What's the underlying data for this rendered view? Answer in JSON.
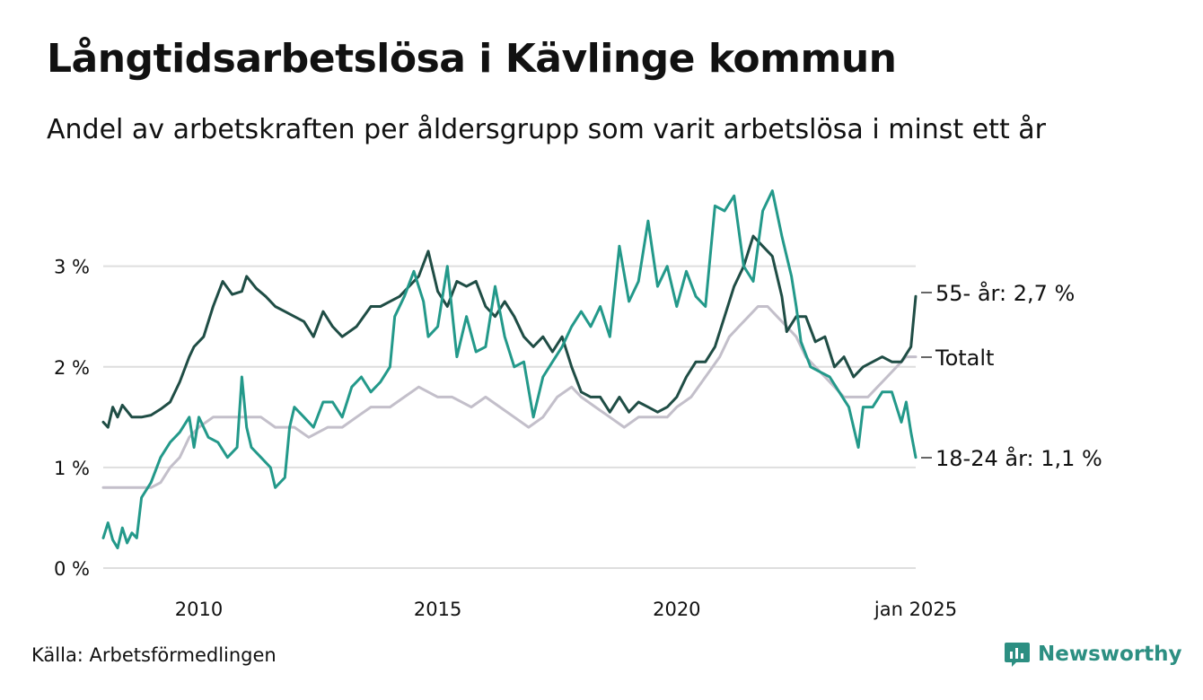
{
  "header": {
    "title": "Långtidsarbetslösa i Kävlinge kommun",
    "subtitle": "Andel av arbetskraften per åldersgrupp som varit arbetslösa i minst ett år"
  },
  "footer": {
    "source": "Källa: Arbetsförmedlingen",
    "brand": "Newsworthy"
  },
  "chart_data": {
    "type": "line",
    "ylim": [
      0,
      3.8
    ],
    "xlim": [
      2008.0,
      2025.0
    ],
    "y_ticks": [
      {
        "value": 0,
        "label": "0 %"
      },
      {
        "value": 1,
        "label": "1 %"
      },
      {
        "value": 2,
        "label": "2 %"
      },
      {
        "value": 3,
        "label": "3 %"
      }
    ],
    "x_ticks": [
      {
        "value": 2010,
        "label": "2010"
      },
      {
        "value": 2015,
        "label": "2015"
      },
      {
        "value": 2020,
        "label": "2020"
      },
      {
        "value": 2025,
        "label": "jan 2025"
      }
    ],
    "grid": "horizontal",
    "series": [
      {
        "id": "total",
        "name": "Totalt",
        "end_label": "Totalt",
        "color": "#c3bfca",
        "points": [
          [
            2008.0,
            0.8
          ],
          [
            2009.0,
            0.8
          ],
          [
            2009.2,
            0.85
          ],
          [
            2009.4,
            1.0
          ],
          [
            2009.6,
            1.1
          ],
          [
            2009.8,
            1.3
          ],
          [
            2010.0,
            1.4
          ],
          [
            2010.3,
            1.5
          ],
          [
            2010.6,
            1.5
          ],
          [
            2011.0,
            1.5
          ],
          [
            2011.3,
            1.5
          ],
          [
            2011.6,
            1.4
          ],
          [
            2012.0,
            1.4
          ],
          [
            2012.3,
            1.3
          ],
          [
            2012.7,
            1.4
          ],
          [
            2013.0,
            1.4
          ],
          [
            2013.3,
            1.5
          ],
          [
            2013.6,
            1.6
          ],
          [
            2014.0,
            1.6
          ],
          [
            2014.3,
            1.7
          ],
          [
            2014.6,
            1.8
          ],
          [
            2015.0,
            1.7
          ],
          [
            2015.3,
            1.7
          ],
          [
            2015.7,
            1.6
          ],
          [
            2016.0,
            1.7
          ],
          [
            2016.3,
            1.6
          ],
          [
            2016.6,
            1.5
          ],
          [
            2016.9,
            1.4
          ],
          [
            2017.2,
            1.5
          ],
          [
            2017.5,
            1.7
          ],
          [
            2017.8,
            1.8
          ],
          [
            2018.0,
            1.7
          ],
          [
            2018.3,
            1.6
          ],
          [
            2018.6,
            1.5
          ],
          [
            2018.9,
            1.4
          ],
          [
            2019.2,
            1.5
          ],
          [
            2019.5,
            1.5
          ],
          [
            2019.8,
            1.5
          ],
          [
            2020.0,
            1.6
          ],
          [
            2020.3,
            1.7
          ],
          [
            2020.6,
            1.9
          ],
          [
            2020.9,
            2.1
          ],
          [
            2021.1,
            2.3
          ],
          [
            2021.3,
            2.4
          ],
          [
            2021.5,
            2.5
          ],
          [
            2021.7,
            2.6
          ],
          [
            2021.9,
            2.6
          ],
          [
            2022.1,
            2.5
          ],
          [
            2022.3,
            2.4
          ],
          [
            2022.5,
            2.3
          ],
          [
            2022.7,
            2.1
          ],
          [
            2022.9,
            2.0
          ],
          [
            2023.1,
            1.9
          ],
          [
            2023.3,
            1.8
          ],
          [
            2023.5,
            1.7
          ],
          [
            2023.8,
            1.7
          ],
          [
            2024.0,
            1.7
          ],
          [
            2024.2,
            1.8
          ],
          [
            2024.4,
            1.9
          ],
          [
            2024.6,
            2.0
          ],
          [
            2024.8,
            2.1
          ],
          [
            2025.0,
            2.1
          ]
        ]
      },
      {
        "id": "age55",
        "name": "55- år",
        "end_label": "55- år: 2,7 %",
        "color": "#1f4d45",
        "points": [
          [
            2008.0,
            1.45
          ],
          [
            2008.1,
            1.4
          ],
          [
            2008.2,
            1.6
          ],
          [
            2008.3,
            1.5
          ],
          [
            2008.4,
            1.62
          ],
          [
            2008.6,
            1.5
          ],
          [
            2008.8,
            1.5
          ],
          [
            2009.0,
            1.52
          ],
          [
            2009.2,
            1.58
          ],
          [
            2009.4,
            1.65
          ],
          [
            2009.6,
            1.85
          ],
          [
            2009.8,
            2.1
          ],
          [
            2009.9,
            2.2
          ],
          [
            2010.1,
            2.3
          ],
          [
            2010.3,
            2.6
          ],
          [
            2010.5,
            2.85
          ],
          [
            2010.7,
            2.72
          ],
          [
            2010.9,
            2.75
          ],
          [
            2011.0,
            2.9
          ],
          [
            2011.2,
            2.78
          ],
          [
            2011.4,
            2.7
          ],
          [
            2011.6,
            2.6
          ],
          [
            2011.8,
            2.55
          ],
          [
            2012.0,
            2.5
          ],
          [
            2012.2,
            2.45
          ],
          [
            2012.4,
            2.3
          ],
          [
            2012.6,
            2.55
          ],
          [
            2012.8,
            2.4
          ],
          [
            2013.0,
            2.3
          ],
          [
            2013.3,
            2.4
          ],
          [
            2013.6,
            2.6
          ],
          [
            2013.8,
            2.6
          ],
          [
            2014.0,
            2.65
          ],
          [
            2014.2,
            2.7
          ],
          [
            2014.4,
            2.8
          ],
          [
            2014.6,
            2.9
          ],
          [
            2014.8,
            3.15
          ],
          [
            2015.0,
            2.75
          ],
          [
            2015.2,
            2.6
          ],
          [
            2015.4,
            2.85
          ],
          [
            2015.6,
            2.8
          ],
          [
            2015.8,
            2.85
          ],
          [
            2016.0,
            2.6
          ],
          [
            2016.2,
            2.5
          ],
          [
            2016.4,
            2.65
          ],
          [
            2016.6,
            2.5
          ],
          [
            2016.8,
            2.3
          ],
          [
            2017.0,
            2.2
          ],
          [
            2017.2,
            2.3
          ],
          [
            2017.4,
            2.15
          ],
          [
            2017.6,
            2.3
          ],
          [
            2017.8,
            2.0
          ],
          [
            2018.0,
            1.75
          ],
          [
            2018.2,
            1.7
          ],
          [
            2018.4,
            1.7
          ],
          [
            2018.6,
            1.55
          ],
          [
            2018.8,
            1.7
          ],
          [
            2019.0,
            1.55
          ],
          [
            2019.2,
            1.65
          ],
          [
            2019.4,
            1.6
          ],
          [
            2019.6,
            1.55
          ],
          [
            2019.8,
            1.6
          ],
          [
            2020.0,
            1.7
          ],
          [
            2020.2,
            1.9
          ],
          [
            2020.4,
            2.05
          ],
          [
            2020.6,
            2.05
          ],
          [
            2020.8,
            2.2
          ],
          [
            2021.0,
            2.5
          ],
          [
            2021.2,
            2.8
          ],
          [
            2021.4,
            3.0
          ],
          [
            2021.6,
            3.3
          ],
          [
            2021.8,
            3.2
          ],
          [
            2022.0,
            3.1
          ],
          [
            2022.2,
            2.7
          ],
          [
            2022.3,
            2.35
          ],
          [
            2022.5,
            2.5
          ],
          [
            2022.7,
            2.5
          ],
          [
            2022.9,
            2.25
          ],
          [
            2023.1,
            2.3
          ],
          [
            2023.3,
            2.0
          ],
          [
            2023.5,
            2.1
          ],
          [
            2023.7,
            1.9
          ],
          [
            2023.9,
            2.0
          ],
          [
            2024.1,
            2.05
          ],
          [
            2024.3,
            2.1
          ],
          [
            2024.5,
            2.05
          ],
          [
            2024.7,
            2.05
          ],
          [
            2024.9,
            2.2
          ],
          [
            2025.0,
            2.7
          ]
        ]
      },
      {
        "id": "age18_24",
        "name": "18-24 år",
        "end_label": "18-24 år: 1,1 %",
        "color": "#23998a",
        "points": [
          [
            2008.0,
            0.3
          ],
          [
            2008.1,
            0.45
          ],
          [
            2008.2,
            0.28
          ],
          [
            2008.3,
            0.2
          ],
          [
            2008.4,
            0.4
          ],
          [
            2008.5,
            0.25
          ],
          [
            2008.6,
            0.35
          ],
          [
            2008.7,
            0.3
          ],
          [
            2008.8,
            0.7
          ],
          [
            2009.0,
            0.85
          ],
          [
            2009.2,
            1.1
          ],
          [
            2009.4,
            1.25
          ],
          [
            2009.6,
            1.35
          ],
          [
            2009.8,
            1.5
          ],
          [
            2009.9,
            1.2
          ],
          [
            2010.0,
            1.5
          ],
          [
            2010.2,
            1.3
          ],
          [
            2010.4,
            1.25
          ],
          [
            2010.6,
            1.1
          ],
          [
            2010.8,
            1.2
          ],
          [
            2010.9,
            1.9
          ],
          [
            2011.0,
            1.4
          ],
          [
            2011.1,
            1.2
          ],
          [
            2011.3,
            1.1
          ],
          [
            2011.5,
            1.0
          ],
          [
            2011.6,
            0.8
          ],
          [
            2011.8,
            0.9
          ],
          [
            2011.9,
            1.4
          ],
          [
            2012.0,
            1.6
          ],
          [
            2012.2,
            1.5
          ],
          [
            2012.4,
            1.4
          ],
          [
            2012.6,
            1.65
          ],
          [
            2012.8,
            1.65
          ],
          [
            2013.0,
            1.5
          ],
          [
            2013.2,
            1.8
          ],
          [
            2013.4,
            1.9
          ],
          [
            2013.6,
            1.75
          ],
          [
            2013.8,
            1.85
          ],
          [
            2014.0,
            2.0
          ],
          [
            2014.1,
            2.5
          ],
          [
            2014.3,
            2.7
          ],
          [
            2014.5,
            2.95
          ],
          [
            2014.7,
            2.65
          ],
          [
            2014.8,
            2.3
          ],
          [
            2015.0,
            2.4
          ],
          [
            2015.2,
            3.0
          ],
          [
            2015.4,
            2.1
          ],
          [
            2015.6,
            2.5
          ],
          [
            2015.8,
            2.15
          ],
          [
            2016.0,
            2.2
          ],
          [
            2016.2,
            2.8
          ],
          [
            2016.4,
            2.3
          ],
          [
            2016.6,
            2.0
          ],
          [
            2016.8,
            2.05
          ],
          [
            2017.0,
            1.5
          ],
          [
            2017.2,
            1.9
          ],
          [
            2017.4,
            2.05
          ],
          [
            2017.6,
            2.2
          ],
          [
            2017.8,
            2.4
          ],
          [
            2018.0,
            2.55
          ],
          [
            2018.2,
            2.4
          ],
          [
            2018.4,
            2.6
          ],
          [
            2018.6,
            2.3
          ],
          [
            2018.8,
            3.2
          ],
          [
            2019.0,
            2.65
          ],
          [
            2019.2,
            2.85
          ],
          [
            2019.4,
            3.45
          ],
          [
            2019.6,
            2.8
          ],
          [
            2019.8,
            3.0
          ],
          [
            2020.0,
            2.6
          ],
          [
            2020.2,
            2.95
          ],
          [
            2020.4,
            2.7
          ],
          [
            2020.6,
            2.6
          ],
          [
            2020.8,
            3.6
          ],
          [
            2021.0,
            3.55
          ],
          [
            2021.2,
            3.7
          ],
          [
            2021.4,
            3.0
          ],
          [
            2021.6,
            2.85
          ],
          [
            2021.8,
            3.55
          ],
          [
            2022.0,
            3.75
          ],
          [
            2022.2,
            3.3
          ],
          [
            2022.4,
            2.9
          ],
          [
            2022.5,
            2.6
          ],
          [
            2022.6,
            2.25
          ],
          [
            2022.8,
            2.0
          ],
          [
            2023.0,
            1.95
          ],
          [
            2023.2,
            1.9
          ],
          [
            2023.4,
            1.75
          ],
          [
            2023.6,
            1.6
          ],
          [
            2023.8,
            1.2
          ],
          [
            2023.9,
            1.6
          ],
          [
            2024.1,
            1.6
          ],
          [
            2024.3,
            1.75
          ],
          [
            2024.5,
            1.75
          ],
          [
            2024.7,
            1.45
          ],
          [
            2024.8,
            1.65
          ],
          [
            2024.9,
            1.35
          ],
          [
            2025.0,
            1.1
          ]
        ]
      }
    ]
  }
}
